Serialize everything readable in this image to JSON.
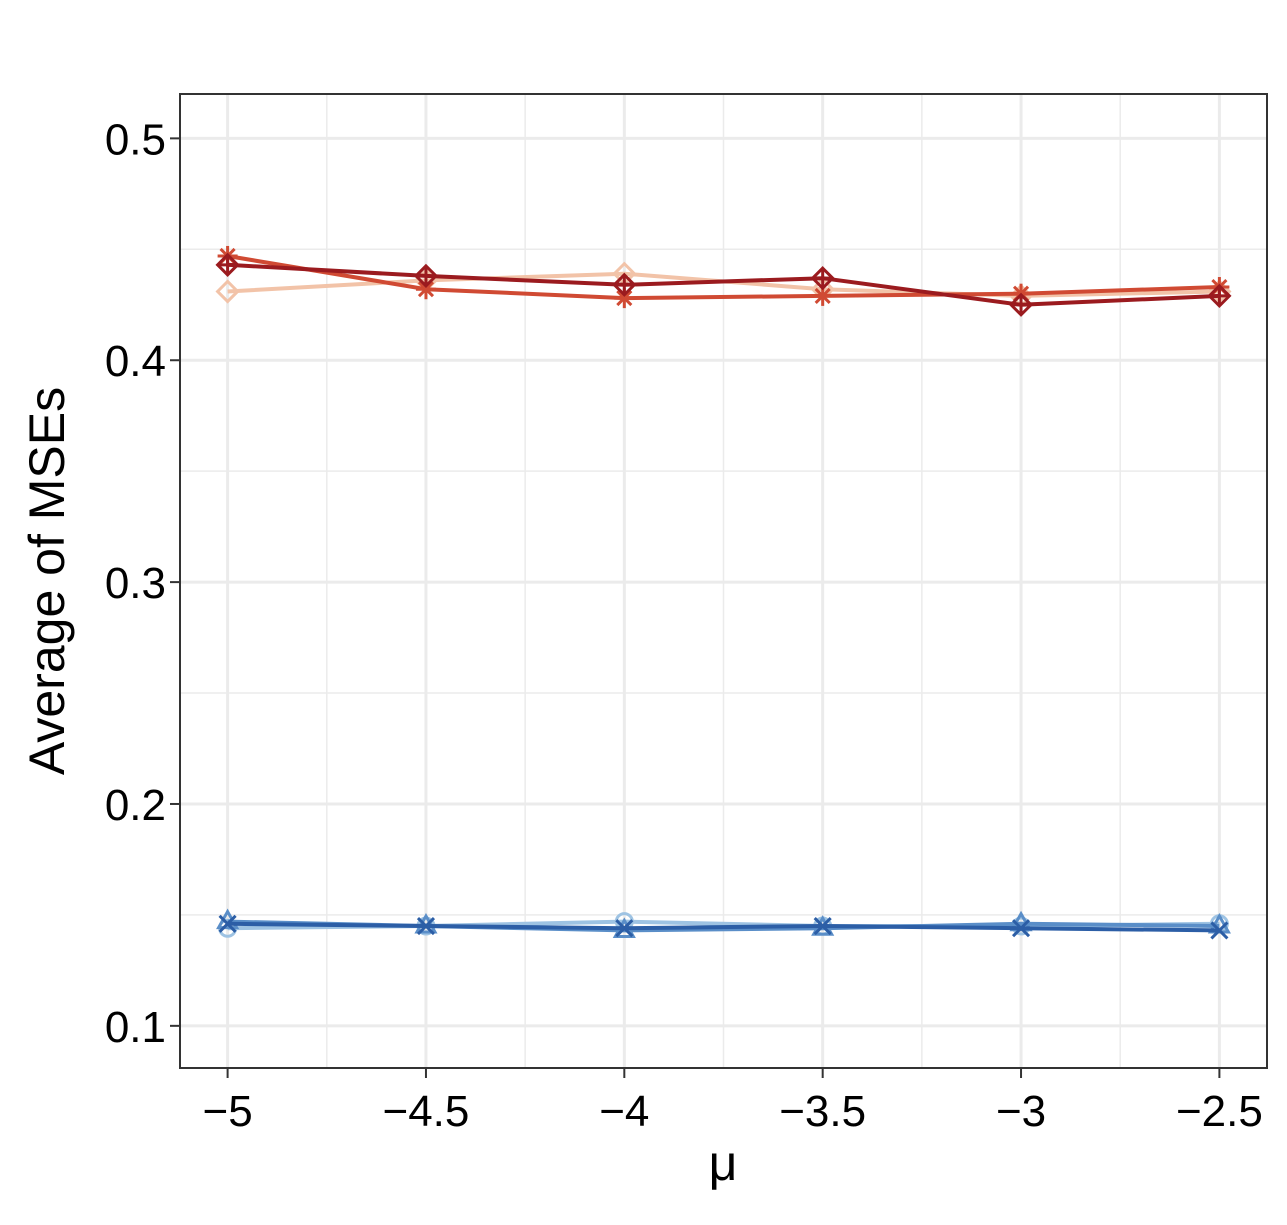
{
  "chart_data": {
    "type": "line",
    "xlabel": "μ",
    "ylabel": "Average of MSEs",
    "xlim": [
      -5.12,
      -2.38
    ],
    "ylim": [
      0.081,
      0.52
    ],
    "x_ticks": [
      -5,
      -4.5,
      -4,
      -3.5,
      -3,
      -2.5
    ],
    "x_tick_labels": [
      "−5",
      "−4.5",
      "−4",
      "−3.5",
      "−3",
      "−2.5"
    ],
    "y_ticks": [
      0.1,
      0.2,
      0.3,
      0.4,
      0.5
    ],
    "y_tick_labels": [
      "0.1",
      "0.2",
      "0.3",
      "0.4",
      "0.5"
    ],
    "grid": true,
    "x": [
      -5,
      -4.5,
      -4,
      -3.5,
      -3,
      -2.5
    ],
    "series": [
      {
        "color": "#f2c3a8",
        "marker": "diamond",
        "values": [
          0.431,
          0.436,
          0.439,
          0.432,
          0.429,
          0.431
        ]
      },
      {
        "color": "#d04a33",
        "marker": "asterisk",
        "values": [
          0.447,
          0.432,
          0.428,
          0.429,
          0.43,
          0.433
        ]
      },
      {
        "color": "#9b1b1f",
        "marker": "diamond-plus",
        "values": [
          0.443,
          0.438,
          0.434,
          0.437,
          0.425,
          0.429
        ]
      },
      {
        "color": "#9ec3e3",
        "marker": "circle",
        "values": [
          0.144,
          0.145,
          0.147,
          0.145,
          0.145,
          0.146
        ]
      },
      {
        "color": "#5a8ec8",
        "marker": "triangle",
        "values": [
          0.147,
          0.145,
          0.143,
          0.144,
          0.146,
          0.145
        ]
      },
      {
        "color": "#2c5ea6",
        "marker": "x",
        "values": [
          0.146,
          0.145,
          0.144,
          0.145,
          0.144,
          0.143
        ]
      }
    ]
  }
}
